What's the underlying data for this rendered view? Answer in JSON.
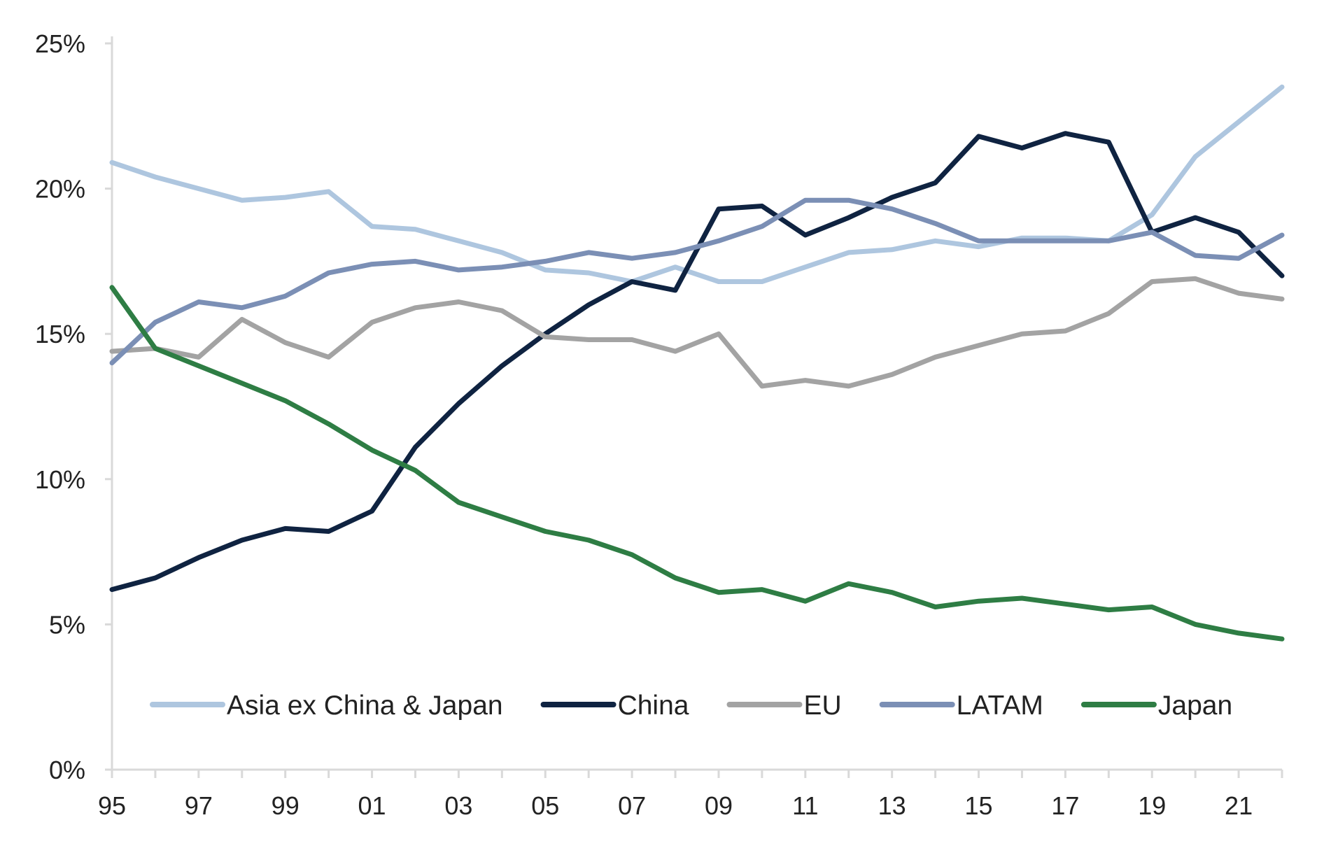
{
  "chart_data": {
    "type": "line",
    "title": "",
    "xlabel": "",
    "ylabel": "",
    "x": [
      1995,
      1996,
      1997,
      1998,
      1999,
      2000,
      2001,
      2002,
      2003,
      2004,
      2005,
      2006,
      2007,
      2008,
      2009,
      2010,
      2011,
      2012,
      2013,
      2014,
      2015,
      2016,
      2017,
      2018,
      2019,
      2020,
      2021,
      2022
    ],
    "xlim": [
      1995,
      2022
    ],
    "ylim": [
      0,
      25
    ],
    "x_ticks": [
      {
        "value": 1995,
        "label": "95"
      },
      {
        "value": 1997,
        "label": "97"
      },
      {
        "value": 1999,
        "label": "99"
      },
      {
        "value": 2001,
        "label": "01"
      },
      {
        "value": 2003,
        "label": "03"
      },
      {
        "value": 2005,
        "label": "05"
      },
      {
        "value": 2007,
        "label": "07"
      },
      {
        "value": 2009,
        "label": "09"
      },
      {
        "value": 2011,
        "label": "11"
      },
      {
        "value": 2013,
        "label": "13"
      },
      {
        "value": 2015,
        "label": "15"
      },
      {
        "value": 2017,
        "label": "17"
      },
      {
        "value": 2019,
        "label": "19"
      },
      {
        "value": 2021,
        "label": "21"
      }
    ],
    "y_ticks": [
      {
        "value": 0,
        "label": "0%"
      },
      {
        "value": 5,
        "label": "5%"
      },
      {
        "value": 10,
        "label": "10%"
      },
      {
        "value": 15,
        "label": "15%"
      },
      {
        "value": 20,
        "label": "20%"
      },
      {
        "value": 25,
        "label": "25%"
      }
    ],
    "grid": false,
    "legend_position": "bottom-inside",
    "series": [
      {
        "name": "Asia ex China & Japan",
        "color": "#aec6df",
        "stroke_width": 7,
        "values": [
          20.9,
          20.4,
          20.0,
          19.6,
          19.7,
          19.9,
          18.7,
          18.6,
          18.2,
          17.8,
          17.2,
          17.1,
          16.8,
          17.3,
          16.8,
          16.8,
          17.3,
          17.8,
          17.9,
          18.2,
          18.0,
          18.3,
          18.3,
          18.2,
          19.1,
          21.1,
          22.3,
          23.5
        ]
      },
      {
        "name": "China",
        "color": "#0f2341",
        "stroke_width": 7,
        "values": [
          6.2,
          6.6,
          7.3,
          7.9,
          8.3,
          8.2,
          8.9,
          11.1,
          12.6,
          13.9,
          15.0,
          16.0,
          16.8,
          16.5,
          19.3,
          19.4,
          18.4,
          19.0,
          19.7,
          20.2,
          21.8,
          21.4,
          21.9,
          21.6,
          18.5,
          19.0,
          18.5,
          17.0
        ]
      },
      {
        "name": "EU",
        "color": "#a3a3a3",
        "stroke_width": 7,
        "values": [
          14.4,
          14.5,
          14.2,
          15.5,
          14.7,
          14.2,
          15.4,
          15.9,
          16.1,
          15.8,
          14.9,
          14.8,
          14.8,
          14.4,
          15.0,
          13.2,
          13.4,
          13.2,
          13.6,
          14.2,
          14.6,
          15.0,
          15.1,
          15.7,
          16.8,
          16.9,
          16.4,
          16.2
        ]
      },
      {
        "name": "LATAM",
        "color": "#7b8fb5",
        "stroke_width": 7,
        "values": [
          14.0,
          15.4,
          16.1,
          15.9,
          16.3,
          17.1,
          17.4,
          17.5,
          17.2,
          17.3,
          17.5,
          17.8,
          17.6,
          17.8,
          18.2,
          18.7,
          19.6,
          19.6,
          19.3,
          18.8,
          18.2,
          18.2,
          18.2,
          18.2,
          18.5,
          17.7,
          17.6,
          18.4
        ]
      },
      {
        "name": "Japan",
        "color": "#2e7d44",
        "stroke_width": 7,
        "values": [
          16.6,
          14.5,
          13.9,
          13.3,
          12.7,
          11.9,
          11.0,
          10.3,
          9.2,
          8.7,
          8.2,
          7.9,
          7.4,
          6.6,
          6.1,
          6.2,
          5.8,
          6.4,
          6.1,
          5.6,
          5.8,
          5.9,
          5.7,
          5.5,
          5.6,
          5.0,
          4.7,
          4.5
        ]
      }
    ]
  }
}
